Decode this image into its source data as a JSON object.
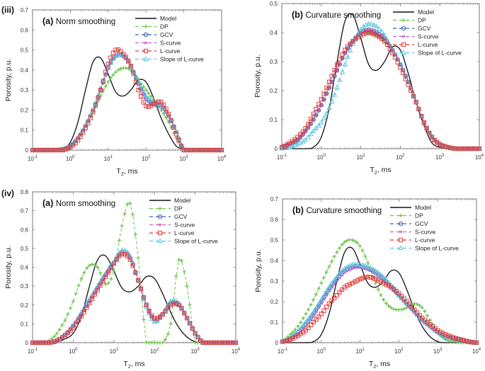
{
  "figure": {
    "row_labels": [
      "(iii)",
      "(iv)"
    ],
    "colors": {
      "Model": "#111111",
      "DP": "#6cc24a",
      "GCV": "#3a5fb0",
      "S-curve": "#c060c8",
      "L-curve": "#e03a3a",
      "Slope of L-curve": "#5bc3e0"
    }
  },
  "chart_data": [
    {
      "id": "iii-a",
      "type": "line",
      "row_label": "(iii)",
      "panel_letter": "(a)",
      "title": "Norm smoothing",
      "xlabel": "T2, ms",
      "ylabel": "Porosity, p.u.",
      "xscale": "log",
      "xlim_log10": [
        -1,
        4
      ],
      "xticks": [
        "10-1",
        "100",
        "101",
        "102",
        "103",
        "104"
      ],
      "ylim": [
        0,
        0.7
      ],
      "yticks": [
        "0",
        "0.1",
        "0.2",
        "0.3",
        "0.4",
        "0.5",
        "0.6",
        "0.7"
      ],
      "legend": [
        "Model",
        "DP",
        "GCV",
        "S-curve",
        "L-curve",
        "Slope of L-curve"
      ],
      "legend_position": "top-right",
      "x_log10": [
        -1.0,
        -0.8,
        -0.6,
        -0.4,
        -0.2,
        0.0,
        0.2,
        0.4,
        0.6,
        0.8,
        1.0,
        1.2,
        1.4,
        1.6,
        1.8,
        2.0,
        2.2,
        2.4,
        2.6,
        2.8,
        3.0,
        3.2,
        3.4,
        3.6,
        3.8,
        4.0
      ],
      "series": [
        {
          "name": "Model",
          "values": [
            0,
            0,
            0,
            0,
            0.005,
            0.04,
            0.14,
            0.3,
            0.44,
            0.46,
            0.38,
            0.29,
            0.27,
            0.3,
            0.35,
            0.34,
            0.26,
            0.16,
            0.08,
            0.02,
            0.005,
            0,
            0,
            0,
            0,
            0
          ]
        },
        {
          "name": "DP",
          "values": [
            0,
            0,
            0,
            0,
            0.005,
            0.02,
            0.06,
            0.12,
            0.19,
            0.27,
            0.34,
            0.39,
            0.41,
            0.4,
            0.35,
            0.3,
            0.25,
            0.2,
            0.14,
            0.06,
            0.01,
            0,
            0,
            0,
            0,
            0
          ]
        },
        {
          "name": "GCV",
          "values": [
            0,
            0,
            0,
            0,
            0.005,
            0.02,
            0.06,
            0.12,
            0.2,
            0.3,
            0.41,
            0.47,
            0.47,
            0.42,
            0.33,
            0.26,
            0.23,
            0.22,
            0.17,
            0.09,
            0.0,
            0,
            0,
            0,
            0,
            0
          ]
        },
        {
          "name": "S-curve",
          "values": [
            0,
            0,
            0,
            0,
            0.005,
            0.02,
            0.06,
            0.12,
            0.2,
            0.3,
            0.41,
            0.47,
            0.47,
            0.42,
            0.33,
            0.26,
            0.23,
            0.22,
            0.17,
            0.09,
            0.0,
            0,
            0,
            0,
            0,
            0
          ]
        },
        {
          "name": "L-curve",
          "values": [
            0,
            0,
            0,
            0,
            0.0,
            0.015,
            0.05,
            0.11,
            0.19,
            0.3,
            0.43,
            0.5,
            0.48,
            0.42,
            0.3,
            0.22,
            0.23,
            0.24,
            0.18,
            0.08,
            0.0,
            0,
            0,
            0,
            0,
            0
          ]
        },
        {
          "name": "Slope of L-curve",
          "values": [
            0,
            0,
            0,
            0,
            0.005,
            0.02,
            0.06,
            0.12,
            0.2,
            0.31,
            0.41,
            0.47,
            0.47,
            0.42,
            0.34,
            0.27,
            0.24,
            0.22,
            0.17,
            0.09,
            0.005,
            0,
            0,
            0,
            0,
            0
          ]
        }
      ]
    },
    {
      "id": "iii-b",
      "type": "line",
      "row_label": "",
      "panel_letter": "(b)",
      "title": "Curvature smoothing",
      "xlabel": "T2, ms",
      "ylabel": "Porosity, p.u.",
      "xscale": "log",
      "xlim_log10": [
        -1,
        4
      ],
      "xticks": [
        "10-1",
        "100",
        "101",
        "102",
        "103",
        "104"
      ],
      "ylim": [
        0,
        0.5
      ],
      "yticks": [
        "0",
        "0.1",
        "0.2",
        "0.3",
        "0.4",
        "0.5"
      ],
      "legend": [
        "Model",
        "DP",
        "GCV",
        "S-curve",
        "L-curve",
        "Slope of L-curve"
      ],
      "legend_position": "top-right",
      "x_log10": [
        -1.0,
        -0.8,
        -0.6,
        -0.4,
        -0.2,
        0.0,
        0.2,
        0.4,
        0.6,
        0.8,
        1.0,
        1.2,
        1.4,
        1.6,
        1.8,
        2.0,
        2.2,
        2.4,
        2.6,
        2.8,
        3.0,
        3.2,
        3.4,
        3.6,
        3.8,
        4.0
      ],
      "series": [
        {
          "name": "Model",
          "values": [
            0,
            0,
            0,
            0,
            0.005,
            0.04,
            0.14,
            0.3,
            0.44,
            0.46,
            0.38,
            0.29,
            0.27,
            0.3,
            0.35,
            0.34,
            0.26,
            0.16,
            0.08,
            0.02,
            0.005,
            0,
            0,
            0,
            0,
            0
          ]
        },
        {
          "name": "DP",
          "values": [
            0.005,
            0.015,
            0.03,
            0.06,
            0.1,
            0.15,
            0.21,
            0.27,
            0.33,
            0.37,
            0.4,
            0.4,
            0.39,
            0.37,
            0.34,
            0.29,
            0.23,
            0.16,
            0.09,
            0.04,
            0.015,
            0.005,
            0,
            0,
            0,
            0
          ]
        },
        {
          "name": "GCV",
          "values": [
            0.005,
            0.015,
            0.03,
            0.06,
            0.1,
            0.15,
            0.21,
            0.27,
            0.33,
            0.37,
            0.4,
            0.41,
            0.4,
            0.38,
            0.34,
            0.29,
            0.23,
            0.16,
            0.09,
            0.04,
            0.015,
            0.005,
            0,
            0,
            0,
            0
          ]
        },
        {
          "name": "S-curve",
          "values": [
            0.005,
            0.015,
            0.03,
            0.06,
            0.1,
            0.15,
            0.21,
            0.27,
            0.33,
            0.37,
            0.4,
            0.41,
            0.4,
            0.38,
            0.34,
            0.29,
            0.23,
            0.16,
            0.09,
            0.04,
            0.015,
            0.005,
            0,
            0,
            0,
            0
          ]
        },
        {
          "name": "L-curve",
          "values": [
            0.005,
            0.02,
            0.04,
            0.07,
            0.12,
            0.17,
            0.23,
            0.29,
            0.34,
            0.37,
            0.39,
            0.4,
            0.39,
            0.37,
            0.33,
            0.28,
            0.22,
            0.16,
            0.09,
            0.04,
            0.015,
            0.005,
            0,
            0,
            0,
            0
          ]
        },
        {
          "name": "Slope of L-curve",
          "values": [
            0,
            0.005,
            0.015,
            0.03,
            0.06,
            0.09,
            0.14,
            0.21,
            0.29,
            0.36,
            0.41,
            0.43,
            0.42,
            0.39,
            0.34,
            0.29,
            0.23,
            0.16,
            0.09,
            0.04,
            0.015,
            0.005,
            0,
            0,
            0,
            0
          ]
        }
      ]
    },
    {
      "id": "iv-a",
      "type": "line",
      "row_label": "(iv)",
      "panel_letter": "(a)",
      "title": "Norm smoothing",
      "xlabel": "T2, ms",
      "ylabel": "Porosity, p.u.",
      "xscale": "log",
      "xlim_log10": [
        -1,
        4
      ],
      "xticks": [
        "10-1",
        "100",
        "101",
        "102",
        "103",
        "104"
      ],
      "ylim": [
        0,
        0.8
      ],
      "yticks": [
        "0",
        "0.1",
        "0.2",
        "0.3",
        "0.4",
        "0.5",
        "0.6",
        "0.7",
        "0.8"
      ],
      "legend": [
        "Model",
        "DP",
        "GCV",
        "S-curve",
        "L-curve",
        "Slope of L-curve"
      ],
      "legend_position": "top-right",
      "x_log10": [
        -1.0,
        -0.8,
        -0.6,
        -0.4,
        -0.2,
        0.0,
        0.2,
        0.4,
        0.6,
        0.8,
        1.0,
        1.2,
        1.4,
        1.6,
        1.8,
        2.0,
        2.2,
        2.4,
        2.6,
        2.8,
        3.0,
        3.2,
        3.4,
        3.6,
        3.8,
        4.0
      ],
      "series": [
        {
          "name": "Model",
          "values": [
            0,
            0,
            0,
            0.005,
            0.02,
            0.05,
            0.14,
            0.3,
            0.44,
            0.46,
            0.38,
            0.29,
            0.27,
            0.3,
            0.35,
            0.34,
            0.26,
            0.16,
            0.08,
            0.03,
            0.005,
            0,
            0,
            0,
            0,
            0
          ]
        },
        {
          "name": "DP",
          "values": [
            0,
            0,
            0.01,
            0.05,
            0.12,
            0.22,
            0.34,
            0.41,
            0.4,
            0.31,
            0.38,
            0.62,
            0.74,
            0.45,
            0.0,
            0.0,
            0.0,
            0.1,
            0.44,
            0.3,
            0.0,
            0,
            0,
            0,
            0,
            0
          ]
        },
        {
          "name": "GCV",
          "values": [
            0,
            0,
            0,
            0.01,
            0.04,
            0.09,
            0.15,
            0.22,
            0.29,
            0.36,
            0.42,
            0.48,
            0.45,
            0.33,
            0.2,
            0.12,
            0.15,
            0.21,
            0.2,
            0.13,
            0.05,
            0,
            0,
            0,
            0,
            0
          ]
        },
        {
          "name": "S-curve",
          "values": [
            0,
            0,
            0,
            0.01,
            0.04,
            0.09,
            0.15,
            0.22,
            0.29,
            0.36,
            0.42,
            0.48,
            0.45,
            0.33,
            0.2,
            0.12,
            0.15,
            0.21,
            0.2,
            0.13,
            0.05,
            0,
            0,
            0,
            0,
            0
          ]
        },
        {
          "name": "L-curve",
          "values": [
            0,
            0,
            0,
            0.01,
            0.04,
            0.08,
            0.14,
            0.21,
            0.28,
            0.35,
            0.42,
            0.47,
            0.44,
            0.33,
            0.2,
            0.13,
            0.15,
            0.2,
            0.2,
            0.13,
            0.05,
            0,
            0,
            0,
            0,
            0
          ]
        },
        {
          "name": "Slope of L-curve",
          "values": [
            0,
            0,
            0,
            0.01,
            0.04,
            0.09,
            0.16,
            0.23,
            0.3,
            0.37,
            0.43,
            0.49,
            0.46,
            0.33,
            0.19,
            0.11,
            0.15,
            0.22,
            0.21,
            0.13,
            0.05,
            0,
            0,
            0,
            0,
            0
          ]
        }
      ]
    },
    {
      "id": "iv-b",
      "type": "line",
      "row_label": "",
      "panel_letter": "(b)",
      "title": "Curvature smoothing",
      "xlabel": "T2, ms",
      "ylabel": "Porosity, p.u.",
      "xscale": "log",
      "xlim_log10": [
        -1,
        4
      ],
      "xticks": [
        "10-1",
        "100",
        "101",
        "102",
        "103",
        "104"
      ],
      "ylim": [
        0,
        0.7
      ],
      "yticks": [
        "0",
        "0.1",
        "0.2",
        "0.3",
        "0.4",
        "0.5",
        "0.6",
        "0.7"
      ],
      "legend": [
        "Model",
        "DP",
        "GCV",
        "S-curve",
        "L-curve",
        "Slope of L-curve"
      ],
      "legend_position": "top-right",
      "x_log10": [
        -1.0,
        -0.8,
        -0.6,
        -0.4,
        -0.2,
        0.0,
        0.2,
        0.4,
        0.6,
        0.8,
        1.0,
        1.2,
        1.4,
        1.6,
        1.8,
        2.0,
        2.2,
        2.4,
        2.6,
        2.8,
        3.0,
        3.2,
        3.4,
        3.6,
        3.8,
        4.0
      ],
      "series": [
        {
          "name": "Model",
          "values": [
            0,
            0,
            0,
            0,
            0.005,
            0.04,
            0.14,
            0.3,
            0.44,
            0.46,
            0.38,
            0.29,
            0.27,
            0.3,
            0.35,
            0.34,
            0.26,
            0.16,
            0.08,
            0.03,
            0.005,
            0,
            0,
            0,
            0,
            0
          ]
        },
        {
          "name": "DP",
          "values": [
            0.01,
            0.04,
            0.08,
            0.14,
            0.21,
            0.29,
            0.37,
            0.44,
            0.49,
            0.5,
            0.47,
            0.39,
            0.29,
            0.21,
            0.17,
            0.16,
            0.17,
            0.19,
            0.17,
            0.11,
            0.05,
            0.015,
            0.005,
            0,
            0,
            0
          ]
        },
        {
          "name": "GCV",
          "values": [
            0.005,
            0.02,
            0.05,
            0.09,
            0.14,
            0.2,
            0.26,
            0.31,
            0.35,
            0.37,
            0.37,
            0.36,
            0.34,
            0.31,
            0.27,
            0.23,
            0.19,
            0.15,
            0.11,
            0.08,
            0.05,
            0.03,
            0.02,
            0.01,
            0.005,
            0
          ]
        },
        {
          "name": "S-curve",
          "values": [
            0.005,
            0.02,
            0.045,
            0.08,
            0.13,
            0.19,
            0.25,
            0.3,
            0.34,
            0.36,
            0.37,
            0.36,
            0.34,
            0.31,
            0.27,
            0.23,
            0.19,
            0.15,
            0.11,
            0.08,
            0.05,
            0.03,
            0.02,
            0.01,
            0.005,
            0
          ]
        },
        {
          "name": "L-curve",
          "values": [
            0.005,
            0.015,
            0.035,
            0.06,
            0.1,
            0.14,
            0.19,
            0.23,
            0.27,
            0.29,
            0.31,
            0.32,
            0.31,
            0.29,
            0.27,
            0.24,
            0.2,
            0.16,
            0.12,
            0.09,
            0.06,
            0.04,
            0.025,
            0.015,
            0.005,
            0
          ]
        },
        {
          "name": "Slope of L-curve",
          "values": [
            0.005,
            0.025,
            0.055,
            0.1,
            0.15,
            0.21,
            0.27,
            0.32,
            0.36,
            0.38,
            0.38,
            0.37,
            0.35,
            0.32,
            0.28,
            0.23,
            0.19,
            0.15,
            0.11,
            0.08,
            0.05,
            0.03,
            0.02,
            0.01,
            0.005,
            0
          ]
        }
      ]
    }
  ]
}
